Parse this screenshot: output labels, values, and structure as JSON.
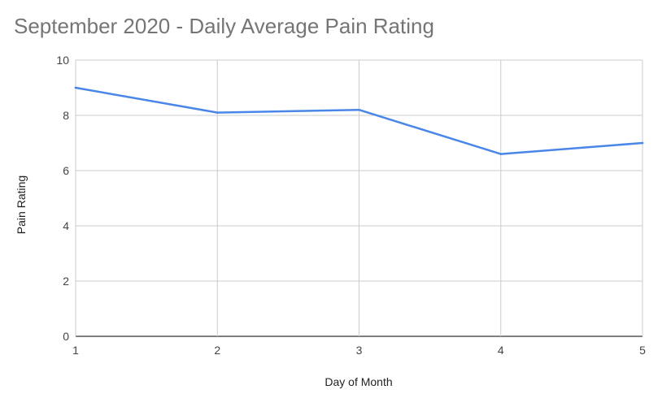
{
  "chart_data": {
    "type": "line",
    "title": "September 2020 - Daily Average Pain Rating",
    "xlabel": "Day of Month",
    "ylabel": "Pain Rating",
    "x": [
      1,
      2,
      3,
      4,
      5
    ],
    "series": [
      {
        "values": [
          9,
          8.1,
          8.2,
          6.6,
          7
        ]
      }
    ],
    "xlim": [
      1,
      5
    ],
    "ylim": [
      0,
      10
    ],
    "x_ticks": [
      "1",
      "2",
      "3",
      "4",
      "5"
    ],
    "y_ticks": [
      "0",
      "2",
      "4",
      "6",
      "8",
      "10"
    ],
    "grid": true,
    "legend": "none",
    "colors": {
      "line": "#4a86e8",
      "grid": "#cccccc",
      "baseline": "#333333"
    }
  }
}
